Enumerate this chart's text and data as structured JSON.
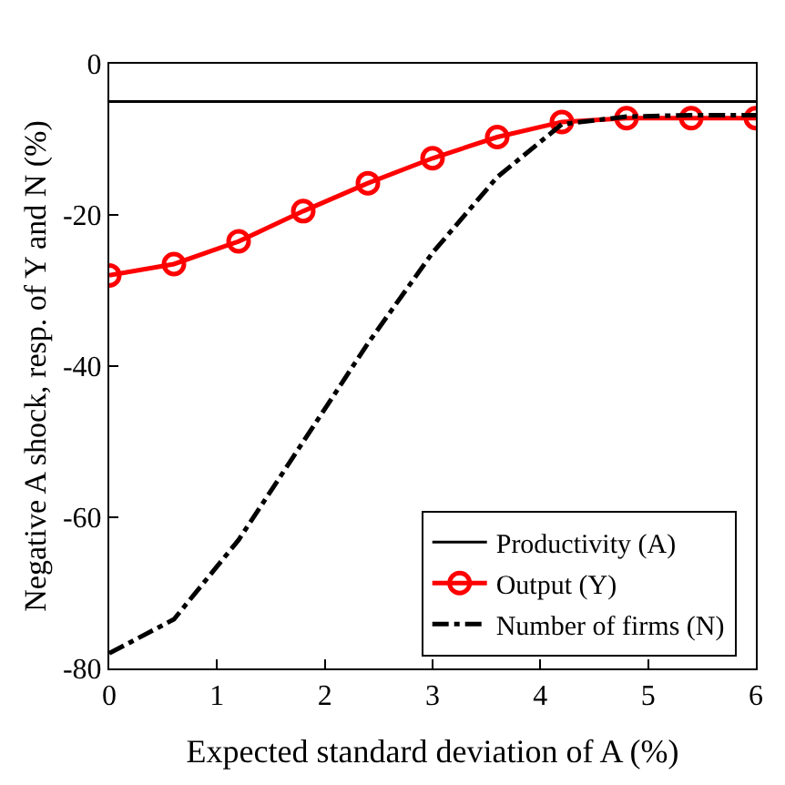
{
  "chart_data": {
    "type": "line",
    "xlabel": "Expected standard deviation of A (%)",
    "ylabel": "Negative A shock, resp. of Y and N (%)",
    "x": [
      0,
      0.6,
      1.2,
      1.8,
      2.4,
      3.0,
      3.6,
      4.2,
      4.8,
      5.4,
      6.0
    ],
    "series": [
      {
        "name": "Productivity (A)",
        "color": "#000000",
        "values": [
          -5,
          -5,
          -5,
          -5,
          -5,
          -5,
          -5,
          -5,
          -5,
          -5,
          -5
        ],
        "marker": "none",
        "line_style": "solid"
      },
      {
        "name": "Output (Y)",
        "color": "#ff0000",
        "values": [
          -28,
          -26.5,
          -23.5,
          -19.5,
          -15.8,
          -12.5,
          -9.7,
          -7.7,
          -7.2,
          -7.2,
          -7.2
        ],
        "marker": "circle",
        "line_style": "solid"
      },
      {
        "name": "Number of firms (N)",
        "color": "#000000",
        "values": [
          -78,
          -73.5,
          -63,
          -50,
          -37,
          -25,
          -15,
          -8,
          -7,
          -6.8,
          -6.8
        ],
        "marker": "none",
        "line_style": "dashdot"
      }
    ],
    "xlim": [
      0,
      6
    ],
    "xticks": [
      0,
      1,
      2,
      3,
      4,
      5,
      6
    ],
    "ylim": [
      -80,
      0
    ],
    "yticks": [
      -80,
      -60,
      -40,
      -20,
      0
    ],
    "legend": "bottom right"
  }
}
